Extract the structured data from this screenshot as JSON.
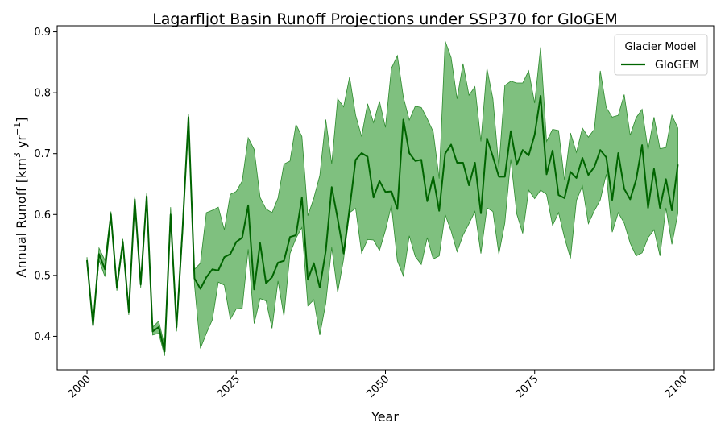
{
  "chart_data": {
    "type": "line",
    "title": "Lagarfljot Basin Runoff Projections under SSP370 for GloGEM",
    "xlabel": "Year",
    "ylabel_main": "Annual Runoff [km",
    "ylabel_sup1": "3",
    "ylabel_mid": " yr",
    "ylabel_sup2": "−1",
    "ylabel_end": "]",
    "xlim": [
      1995,
      2105
    ],
    "ylim": [
      0.345,
      0.91
    ],
    "x_ticks": [
      2000,
      2025,
      2050,
      2075,
      2100
    ],
    "x_tick_labels": [
      "2000",
      "2025",
      "2050",
      "2075",
      "2100"
    ],
    "y_ticks": [
      0.4,
      0.5,
      0.6,
      0.7,
      0.8,
      0.9
    ],
    "y_tick_labels": [
      "0.4",
      "0.5",
      "0.6",
      "0.7",
      "0.8",
      "0.9"
    ],
    "grid": false,
    "legend": {
      "title": "Glacier Model",
      "position": "top-right",
      "entries": [
        "GloGEM"
      ]
    },
    "colors": {
      "line": "#006400",
      "band": "#3a9e3a",
      "band_edge": "#2e8b2e"
    },
    "series": [
      {
        "name": "GloGEM",
        "x": [
          2000,
          2001,
          2002,
          2003,
          2004,
          2005,
          2006,
          2007,
          2008,
          2009,
          2010,
          2011,
          2012,
          2013,
          2014,
          2015,
          2016,
          2017,
          2018,
          2019,
          2020,
          2021,
          2022,
          2023,
          2024,
          2025,
          2026,
          2027,
          2028,
          2029,
          2030,
          2031,
          2032,
          2033,
          2034,
          2035,
          2036,
          2037,
          2038,
          2039,
          2040,
          2041,
          2042,
          2043,
          2044,
          2045,
          2046,
          2047,
          2048,
          2049,
          2050,
          2051,
          2052,
          2053,
          2054,
          2055,
          2056,
          2057,
          2058,
          2059,
          2060,
          2061,
          2062,
          2063,
          2064,
          2065,
          2066,
          2067,
          2068,
          2069,
          2070,
          2071,
          2072,
          2073,
          2074,
          2075,
          2076,
          2077,
          2078,
          2079,
          2080,
          2081,
          2082,
          2083,
          2084,
          2085,
          2086,
          2087,
          2088,
          2089,
          2090,
          2091,
          2092,
          2093,
          2094,
          2095,
          2096,
          2097,
          2098,
          2099
        ],
        "mean": [
          0.525,
          0.418,
          0.535,
          0.51,
          0.6,
          0.48,
          0.555,
          0.44,
          0.625,
          0.485,
          0.63,
          0.408,
          0.415,
          0.375,
          0.6,
          0.415,
          0.575,
          0.76,
          0.495,
          0.478,
          0.497,
          0.51,
          0.508,
          0.53,
          0.535,
          0.555,
          0.562,
          0.615,
          0.477,
          0.553,
          0.487,
          0.497,
          0.521,
          0.524,
          0.563,
          0.566,
          0.628,
          0.493,
          0.52,
          0.48,
          0.54,
          0.645,
          0.593,
          0.536,
          0.61,
          0.69,
          0.701,
          0.695,
          0.628,
          0.655,
          0.637,
          0.638,
          0.609,
          0.756,
          0.701,
          0.688,
          0.69,
          0.622,
          0.662,
          0.606,
          0.7,
          0.715,
          0.685,
          0.685,
          0.648,
          0.685,
          0.602,
          0.725,
          0.695,
          0.662,
          0.662,
          0.737,
          0.682,
          0.706,
          0.697,
          0.731,
          0.795,
          0.666,
          0.705,
          0.632,
          0.627,
          0.67,
          0.66,
          0.693,
          0.665,
          0.678,
          0.706,
          0.694,
          0.624,
          0.701,
          0.642,
          0.625,
          0.657,
          0.714,
          0.611,
          0.675,
          0.611,
          0.658,
          0.607,
          0.682
        ],
        "upper": [
          0.53,
          0.42,
          0.545,
          0.525,
          0.605,
          0.485,
          0.56,
          0.445,
          0.63,
          0.49,
          0.635,
          0.415,
          0.425,
          0.385,
          0.612,
          0.422,
          0.585,
          0.765,
          0.51,
          0.52,
          0.603,
          0.607,
          0.612,
          0.575,
          0.633,
          0.638,
          0.655,
          0.726,
          0.707,
          0.628,
          0.609,
          0.603,
          0.627,
          0.683,
          0.688,
          0.748,
          0.728,
          0.598,
          0.627,
          0.664,
          0.756,
          0.683,
          0.79,
          0.777,
          0.826,
          0.763,
          0.728,
          0.782,
          0.751,
          0.786,
          0.743,
          0.84,
          0.861,
          0.793,
          0.755,
          0.778,
          0.776,
          0.757,
          0.736,
          0.659,
          0.885,
          0.858,
          0.79,
          0.848,
          0.796,
          0.81,
          0.72,
          0.84,
          0.79,
          0.677,
          0.812,
          0.819,
          0.816,
          0.816,
          0.836,
          0.783,
          0.875,
          0.72,
          0.74,
          0.738,
          0.656,
          0.734,
          0.702,
          0.742,
          0.727,
          0.74,
          0.836,
          0.776,
          0.76,
          0.763,
          0.797,
          0.73,
          0.759,
          0.773,
          0.706,
          0.76,
          0.708,
          0.71,
          0.763,
          0.742
        ],
        "lower": [
          0.52,
          0.416,
          0.525,
          0.498,
          0.595,
          0.475,
          0.55,
          0.435,
          0.62,
          0.48,
          0.625,
          0.402,
          0.405,
          0.368,
          0.59,
          0.408,
          0.565,
          0.755,
          0.485,
          0.38,
          0.405,
          0.427,
          0.489,
          0.484,
          0.428,
          0.445,
          0.446,
          0.543,
          0.421,
          0.462,
          0.458,
          0.413,
          0.491,
          0.433,
          0.536,
          0.561,
          0.579,
          0.45,
          0.46,
          0.402,
          0.454,
          0.546,
          0.472,
          0.527,
          0.603,
          0.61,
          0.537,
          0.559,
          0.558,
          0.541,
          0.574,
          0.615,
          0.524,
          0.499,
          0.565,
          0.531,
          0.518,
          0.562,
          0.527,
          0.532,
          0.6,
          0.573,
          0.539,
          0.566,
          0.585,
          0.605,
          0.536,
          0.611,
          0.605,
          0.535,
          0.586,
          0.691,
          0.601,
          0.569,
          0.64,
          0.626,
          0.64,
          0.633,
          0.582,
          0.603,
          0.562,
          0.528,
          0.623,
          0.647,
          0.585,
          0.606,
          0.624,
          0.666,
          0.571,
          0.603,
          0.586,
          0.553,
          0.532,
          0.537,
          0.562,
          0.575,
          0.532,
          0.611,
          0.551,
          0.602
        ]
      }
    ]
  }
}
